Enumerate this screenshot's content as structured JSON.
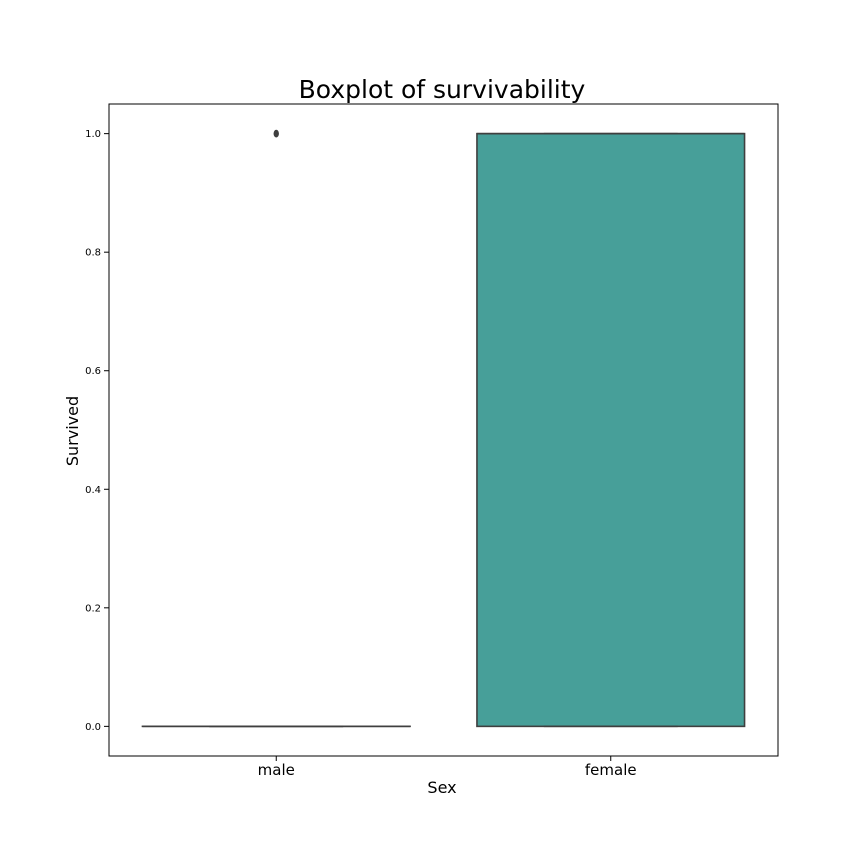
{
  "chart_data": {
    "type": "box",
    "title": "Boxplot of survivability",
    "xlabel": "Sex",
    "ylabel": "Survived",
    "ylim": [
      -0.05,
      1.05
    ],
    "yticks": [
      0.0,
      0.2,
      0.4,
      0.6,
      0.8,
      1.0
    ],
    "ytick_labels": [
      "0.0",
      "0.2",
      "0.4",
      "0.6",
      "0.8",
      "1.0"
    ],
    "grid": false,
    "categories": [
      "male",
      "female"
    ],
    "boxes": [
      {
        "category": "male",
        "whisker_low": 0.0,
        "q1": 0.0,
        "median": 0.0,
        "q3": 0.0,
        "whisker_high": 0.0,
        "outliers": [
          1.0
        ],
        "color": "#d65a5a"
      },
      {
        "category": "female",
        "whisker_low": 0.0,
        "q1": 0.0,
        "median": 1.0,
        "q3": 1.0,
        "whisker_high": 1.0,
        "outliers": [],
        "color": "#479f99"
      }
    ],
    "colors": {
      "box_edge": "#3f3f3f",
      "axes": "#000000"
    }
  }
}
